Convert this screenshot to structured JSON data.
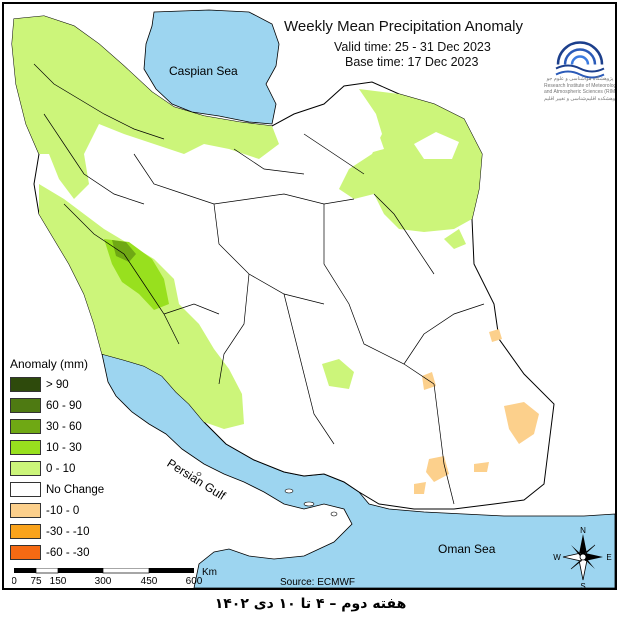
{
  "title": "Weekly Mean Precipitation Anomaly",
  "valid_time": "Valid time: 25 - 31 Dec 2023",
  "base_time": "Base time: 17 Dec 2023",
  "logo": {
    "line1": "پژوهشگاه هواشناسی و علوم جو",
    "line2": "Research Institute of Meteorology",
    "line3": "and Atmospheric Sciences (RIMAS)",
    "line4": "پژوهشکده اقلیم‌شناسی و تغییر اقلیم"
  },
  "labels": {
    "caspian": "Caspian Sea",
    "gulf": "Persian Gulf",
    "oman": "Oman Sea"
  },
  "legend": {
    "title": "Anomaly (mm)",
    "items": [
      {
        "label": "> 90",
        "color": "#2e4a0c"
      },
      {
        "label": "60 - 90",
        "color": "#4e7a12"
      },
      {
        "label": "30 - 60",
        "color": "#6fa814"
      },
      {
        "label": "10 - 30",
        "color": "#98e01e"
      },
      {
        "label": "0 - 10",
        "color": "#ccf57a"
      },
      {
        "label": "No Change",
        "color": "#ffffff"
      },
      {
        "label": "-10 - 0",
        "color": "#fcd08c"
      },
      {
        "label": "-30 - -10",
        "color": "#f9a31c"
      },
      {
        "label": "-60 - -30",
        "color": "#f56a13"
      }
    ]
  },
  "scale": {
    "ticks": [
      "0",
      "75",
      "150",
      "300",
      "450",
      "600"
    ],
    "unit": "Km"
  },
  "compass": {
    "n": "N",
    "s": "S",
    "e": "E",
    "w": "W"
  },
  "source": "Source: ECMWF",
  "caption": "هفته دوم – ۴ تا ۱۰ دی ۱۴۰۲",
  "colors": {
    "sea": "#9dd5f0",
    "light_green": "#ccf57a",
    "mid_green": "#98e01e",
    "dark_green": "#6fa814",
    "light_orange": "#fcd08c",
    "border": "#000000"
  }
}
